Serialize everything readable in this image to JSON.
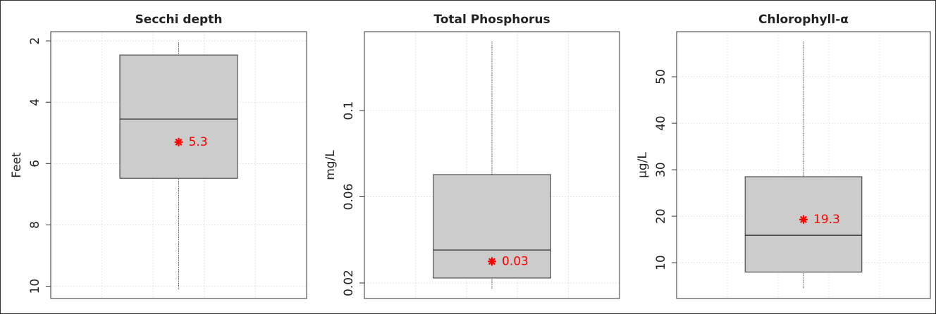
{
  "chart_data": [
    {
      "type": "box",
      "title": "Secchi depth",
      "ylabel": "Feet",
      "reverse_y": true,
      "ylim": [
        1.7,
        10.4
      ],
      "yticks": [
        2,
        4,
        6,
        8,
        10
      ],
      "grid": true,
      "whisker_low": 2.05,
      "q1": 2.46,
      "median": 4.55,
      "q3": 6.48,
      "whisker_high": 10.1,
      "mean": 5.3,
      "box_color": "#cccccc",
      "mean_color": "#ff0000"
    },
    {
      "type": "box",
      "title": "Total Phosphorus",
      "ylabel": "mg/L",
      "reverse_y": false,
      "ylim": [
        0.0128,
        0.1366
      ],
      "yticks": [
        0.02,
        0.06,
        0.1
      ],
      "grid": true,
      "whisker_low": 0.0174,
      "q1": 0.0223,
      "median": 0.0353,
      "q3": 0.0703,
      "whisker_high": 0.132,
      "mean": 0.03,
      "box_color": "#cccccc",
      "mean_color": "#ff0000"
    },
    {
      "type": "box",
      "title": "Chlorophyll-α",
      "ylabel": "µg/L",
      "reverse_y": false,
      "ylim": [
        2.3,
        59.7
      ],
      "yticks": [
        10,
        20,
        30,
        40,
        50
      ],
      "grid": true,
      "whisker_low": 4.5,
      "q1": 8.0,
      "median": 15.9,
      "q3": 28.5,
      "whisker_high": 57.6,
      "mean": 19.3,
      "box_color": "#cccccc",
      "mean_color": "#ff0000"
    }
  ]
}
